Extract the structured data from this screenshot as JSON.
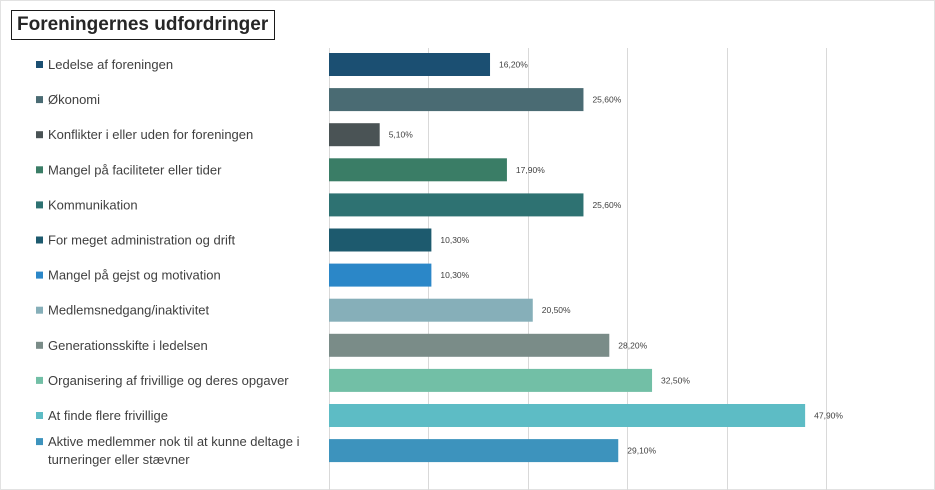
{
  "chart_data": {
    "type": "bar",
    "orientation": "horizontal",
    "title": "Foreningernes udfordringer",
    "xlabel": "",
    "ylabel": "",
    "xlim": [
      0,
      50
    ],
    "grid": true,
    "categories": [
      "Ledelse af foreningen",
      "Økonomi",
      "Konflikter i eller uden for foreningen",
      "Mangel på faciliteter eller tider",
      "Kommunikation",
      "For meget administration og drift",
      "Mangel på gejst og motivation",
      "Medlemsnedgang/inaktivitet",
      "Generationsskifte i ledelsen",
      "Organisering af frivillige og deres opgaver",
      "At finde flere frivillige",
      "Aktive medlemmer nok til at kunne deltage i turneringer eller stævner"
    ],
    "category_lines": [
      [
        "Ledelse af foreningen"
      ],
      [
        "Økonomi"
      ],
      [
        "Konflikter i eller uden for foreningen"
      ],
      [
        "Mangel på faciliteter eller tider"
      ],
      [
        "Kommunikation"
      ],
      [
        "For meget administration og drift"
      ],
      [
        "Mangel på gejst og motivation"
      ],
      [
        "Medlemsnedgang/inaktivitet"
      ],
      [
        "Generationsskifte i ledelsen"
      ],
      [
        "Organisering af frivillige og deres opgaver"
      ],
      [
        "At finde flere frivillige"
      ],
      [
        "Aktive medlemmer nok til at kunne deltage i",
        "turneringer eller stævner"
      ]
    ],
    "values": [
      16.2,
      25.6,
      5.1,
      17.9,
      25.6,
      10.3,
      10.3,
      20.5,
      28.2,
      32.5,
      47.9,
      29.1
    ],
    "value_labels": [
      "16,20%",
      "25,60%",
      "5,10%",
      "17,90%",
      "25,60%",
      "10,30%",
      "10,30%",
      "20,50%",
      "28,20%",
      "32,50%",
      "47,90%",
      "29,10%"
    ],
    "colors": [
      "#1b4f72",
      "#4a6b73",
      "#4a5355",
      "#3a7d66",
      "#2e7272",
      "#1d5a6e",
      "#2b87c8",
      "#86afb9",
      "#7a8c88",
      "#72bfa6",
      "#5dbcc5",
      "#3d93bd"
    ]
  }
}
